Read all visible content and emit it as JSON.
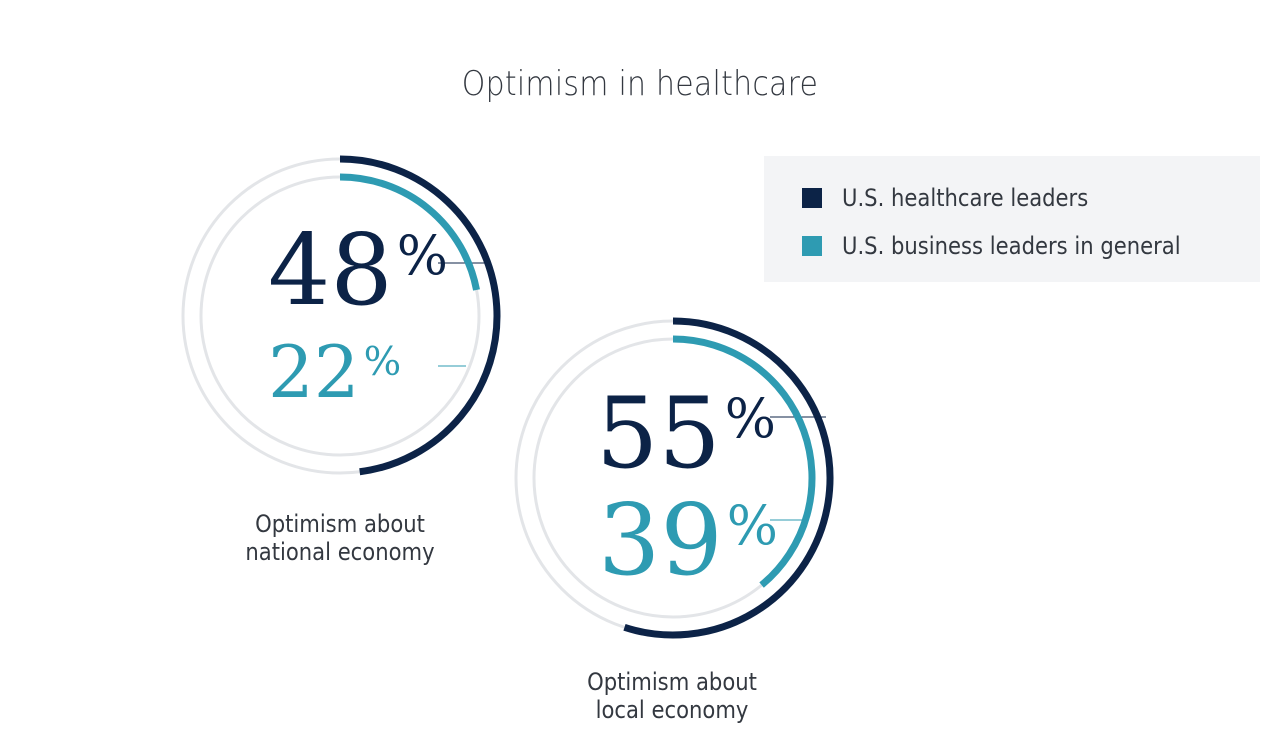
{
  "colors": {
    "healthcare": "#0c2347",
    "business": "#2e9bb2",
    "track": "#e3e5e8",
    "text": "#333840"
  },
  "chart_data": {
    "type": "donut",
    "title": "Optimism in healthcare",
    "legend_position": "top-right",
    "series": [
      {
        "name": "U.S. healthcare leaders"
      },
      {
        "name": "U.S. business leaders in general"
      }
    ],
    "charts": [
      {
        "label": "Optimism about national economy",
        "label_lines": [
          "Optimism about",
          "national economy"
        ],
        "values": [
          48,
          22
        ],
        "value_labels": [
          "48",
          "22"
        ],
        "unit": "%"
      },
      {
        "label": "Optimism about local economy",
        "label_lines": [
          "Optimism about",
          "local economy"
        ],
        "values": [
          55,
          39
        ],
        "value_labels": [
          "55",
          "39"
        ],
        "unit": "%"
      }
    ]
  }
}
